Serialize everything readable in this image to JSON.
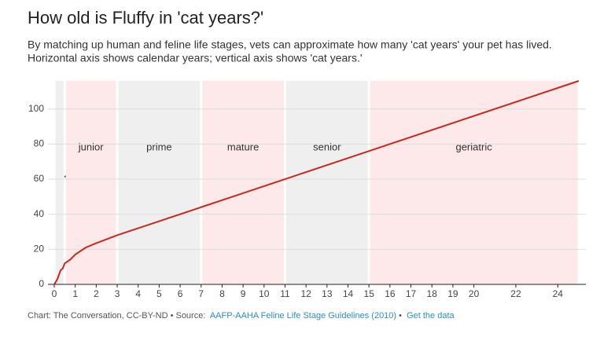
{
  "chart_data": {
    "type": "line",
    "title": "How old is Fluffy in 'cat years?'",
    "subtitle": [
      "By matching up human and feline life stages, vets can approximate how many 'cat years' your pet has lived.",
      "Horizontal axis shows calendar years; vertical axis shows 'cat years.'"
    ],
    "x": [
      0,
      0.15,
      0.3,
      0.4,
      0.5,
      0.75,
      1,
      1.5,
      2,
      3,
      7,
      11,
      15,
      25
    ],
    "series": [
      {
        "color": "#c8281e",
        "values": [
          0,
          3,
          8,
          9,
          12,
          14,
          17,
          21,
          23.5,
          28,
          44,
          60,
          76,
          116
        ]
      }
    ],
    "bands": [
      {
        "label": "←kitten",
        "start": 0,
        "end": 0.5,
        "color": "#efefef"
      },
      {
        "label": "junior",
        "start": 0.5,
        "end": 3,
        "color": "#fde9e9"
      },
      {
        "label": "prime",
        "start": 3,
        "end": 7,
        "color": "#efefef"
      },
      {
        "label": "mature",
        "start": 7,
        "end": 11,
        "color": "#fde9e9"
      },
      {
        "label": "senior",
        "start": 11,
        "end": 15,
        "color": "#efefef"
      },
      {
        "label": "geriatric",
        "start": 15,
        "end": 25,
        "color": "#fde9e9"
      }
    ],
    "xlim": [
      0,
      25
    ],
    "xticks": [
      0,
      1,
      2,
      3,
      4,
      5,
      6,
      7,
      8,
      9,
      10,
      11,
      12,
      13,
      14,
      15,
      16,
      17,
      18,
      19,
      20,
      22,
      24
    ],
    "ylim": [
      0,
      116
    ],
    "yticks": [
      0,
      20,
      40,
      60,
      80,
      100
    ],
    "grid": true,
    "footer": {
      "credit": "Chart: The Conversation, CC-BY-ND • Source:",
      "source": "AAFP-AAHA Feline Life Stage Guidelines (2010)",
      "separator": "•",
      "data_link": "Get the data"
    }
  }
}
